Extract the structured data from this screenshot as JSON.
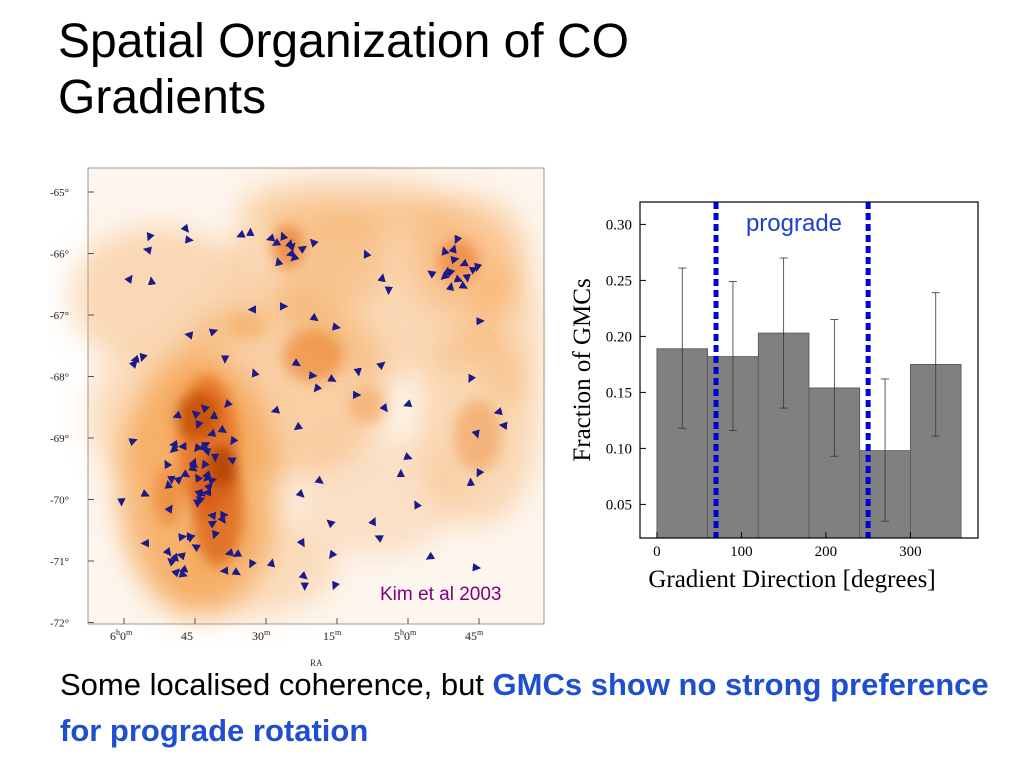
{
  "slide": {
    "title_line1": "Spatial Organization of CO",
    "title_line2": "Gradients",
    "caption_plain": "Some localised coherence, but ",
    "caption_highlight": "GMCs show no strong preference for prograde rotation",
    "colors": {
      "highlight": "#1f4fd1",
      "prograde_line": "#0000dd",
      "bar": "#808080",
      "citation": "#800080",
      "arrow": "#1a1a8a",
      "emission": "#f08a1a"
    }
  },
  "map": {
    "citation": "Kim et al 2003",
    "dec_labels": [
      "-65°",
      "-66°",
      "-67°",
      "-68°",
      "-69°",
      "-70°",
      "-71°",
      "-72°"
    ],
    "ra_labels": [
      {
        "h": "6",
        "hs": "h",
        "m": "0",
        "ms": "m"
      },
      {
        "h": "",
        "hs": "",
        "m": "45",
        "ms": ""
      },
      {
        "h": "",
        "hs": "",
        "m": "30",
        "ms": "m"
      },
      {
        "h": "",
        "hs": "",
        "m": "15",
        "ms": "m"
      },
      {
        "h": "5",
        "hs": "h",
        "m": "0",
        "ms": "m"
      },
      {
        "h": "",
        "hs": "",
        "m": "45",
        "ms": "m"
      }
    ],
    "ra_axis_label": "RA"
  },
  "chart_data": {
    "type": "bar",
    "title": "",
    "xlabel": "Gradient Direction [degrees]",
    "ylabel": "Fraction of GMCs",
    "xlim": [
      -20,
      380
    ],
    "ylim": [
      0.02,
      0.32
    ],
    "x_ticks": [
      0,
      100,
      200,
      300
    ],
    "y_ticks": [
      0.05,
      0.1,
      0.15,
      0.2,
      0.25,
      0.3
    ],
    "x_tick_labels": [
      "0",
      "100",
      "200",
      "300"
    ],
    "y_tick_labels": [
      "0.05",
      "0.10",
      "0.15",
      "0.20",
      "0.25",
      "0.30"
    ],
    "bin_edges": [
      0,
      60,
      120,
      180,
      240,
      300,
      360
    ],
    "values": [
      0.189,
      0.182,
      0.203,
      0.154,
      0.098,
      0.175
    ],
    "error_low": [
      0.118,
      0.116,
      0.136,
      0.093,
      0.035,
      0.111
    ],
    "error_high": [
      0.261,
      0.249,
      0.27,
      0.215,
      0.162,
      0.239
    ],
    "prograde_lines": [
      70,
      250
    ],
    "annotation": "prograde"
  }
}
